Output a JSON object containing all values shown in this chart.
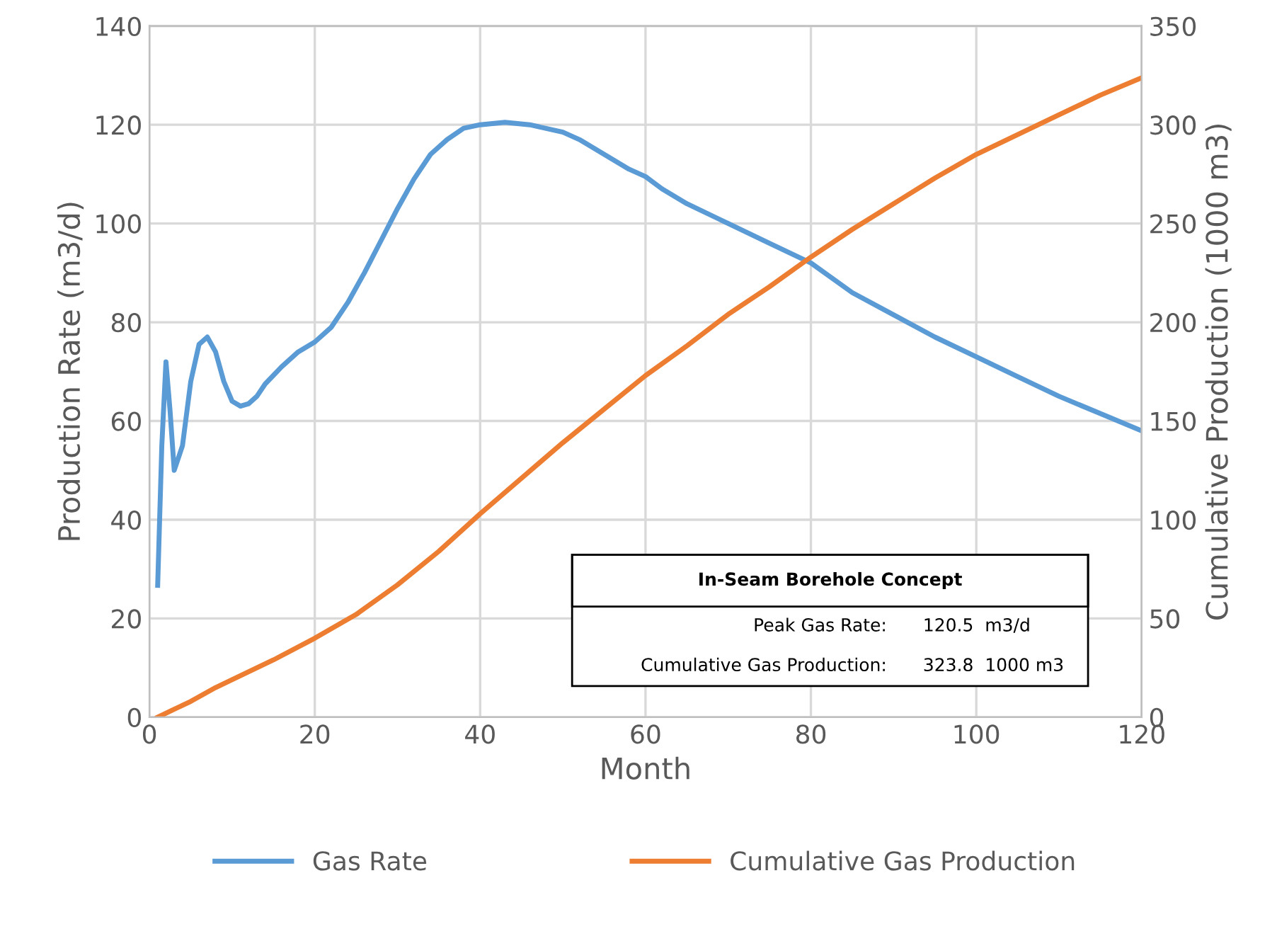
{
  "chart_data": {
    "type": "line",
    "xlabel": "Month",
    "ylabel": "Production Rate (m3/d)",
    "y2label": "Cumulative Production (1000 m3)",
    "xlim": [
      0,
      120
    ],
    "xticks": [
      0,
      20,
      40,
      60,
      80,
      100,
      120
    ],
    "ylim": [
      0,
      140
    ],
    "yticks": [
      0,
      20,
      40,
      60,
      80,
      100,
      120,
      140
    ],
    "y2lim": [
      0,
      350
    ],
    "y2ticks": [
      0,
      50,
      100,
      150,
      200,
      250,
      300,
      350
    ],
    "grid": true,
    "legend": "bottom",
    "marker": "none",
    "line_style": "solid",
    "series": [
      {
        "name": "Gas Rate",
        "color": "#5b9bd5",
        "x": [
          1,
          1.5,
          2,
          2.5,
          3,
          4,
          5,
          6,
          7,
          8,
          9,
          10,
          11,
          12,
          13,
          14,
          16,
          18,
          20,
          22,
          24,
          26,
          28,
          30,
          32,
          34,
          36,
          38,
          40,
          43,
          46,
          50,
          52,
          55,
          58,
          60,
          62,
          65,
          70,
          75,
          80,
          85,
          90,
          95,
          100,
          105,
          110,
          115,
          120
        ],
        "values": [
          26.7,
          55,
          72,
          62,
          50,
          55,
          68,
          75.5,
          77,
          74,
          68,
          64,
          63,
          63.5,
          65,
          67.5,
          71,
          74,
          76,
          79,
          84,
          90,
          96.5,
          103,
          109,
          114,
          117,
          119.3,
          120,
          120.5,
          120,
          118.5,
          117,
          114,
          111,
          109.5,
          107,
          104,
          100,
          96,
          92,
          86,
          81.5,
          77,
          73,
          69,
          65,
          61.5,
          58
        ]
      },
      {
        "name": "Cumulative Gas Production",
        "color": "#ed7d31",
        "axis": "y2",
        "x": [
          1,
          3,
          5,
          8,
          10,
          15,
          20,
          25,
          30,
          35,
          40,
          45,
          50,
          55,
          60,
          65,
          70,
          75,
          80,
          85,
          90,
          95,
          100,
          105,
          110,
          115,
          120
        ],
        "values": [
          0,
          4,
          8,
          15,
          19,
          29,
          40,
          52,
          67,
          84,
          103,
          121,
          139,
          156,
          173,
          188,
          204,
          218,
          233,
          247,
          260,
          273,
          285,
          295,
          305,
          315,
          323.8
        ]
      }
    ],
    "annotations": [
      "In-Seam Borehole Concept",
      "Peak Gas Rate:",
      "120.5  m3/d",
      "Cumulative Gas Production:",
      "323.8  1000 m3"
    ]
  }
}
